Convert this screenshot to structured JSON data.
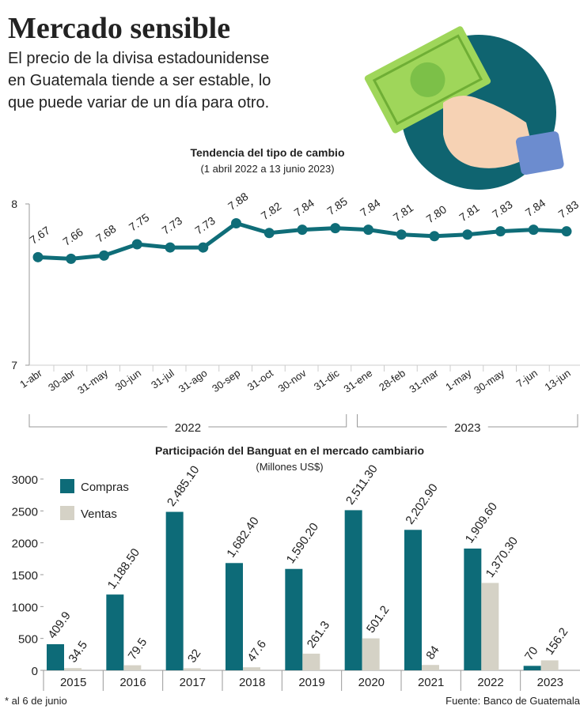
{
  "header": {
    "title": "Mercado sensible",
    "subtitle": [
      "El precio de la divisa estadounidense",
      "en Guatemala tiende a ser estable, lo",
      "que puede variar de un día para otro."
    ]
  },
  "chart_data": [
    {
      "type": "line",
      "title": "Tendencia del tipo de cambio",
      "subtitle": "(1 abril 2022 a 13 junio 2023)",
      "categories": [
        "1-abr",
        "30-abr",
        "31-may",
        "30-jun",
        "31-jul",
        "31-ago",
        "30-sep",
        "31-oct",
        "30-nov",
        "31-dic",
        "31-ene",
        "28-feb",
        "31-mar",
        "1-may",
        "30-may",
        "7-jun",
        "13-jun"
      ],
      "values": [
        7.67,
        7.66,
        7.68,
        7.75,
        7.73,
        7.73,
        7.88,
        7.82,
        7.84,
        7.85,
        7.84,
        7.81,
        7.8,
        7.81,
        7.83,
        7.84,
        7.83
      ],
      "value_labels": [
        "7.67",
        "7.66",
        "7.68",
        "7.75",
        "7.73",
        "7.73",
        "7.88",
        "7.82",
        "7.84",
        "7.85",
        "7.84",
        "7.81",
        "7.80",
        "7.81",
        "7.83",
        "7.84",
        "7.83"
      ],
      "color": "#0f6d78",
      "ylim": [
        7,
        8
      ],
      "yticks": [
        7,
        8
      ],
      "groups": [
        {
          "label": "2022",
          "count": 10
        },
        {
          "label": "2023",
          "count": 7
        }
      ]
    },
    {
      "type": "bar",
      "title": "Participación del Banguat en el mercado cambiario",
      "subtitle": "(Millones US$)",
      "categories": [
        "2015",
        "2016",
        "2017",
        "2018",
        "2019",
        "2020",
        "2021",
        "2022",
        "2023"
      ],
      "series": [
        {
          "name": "Compras",
          "color": "#0d6b78",
          "values": [
            409.9,
            1188.5,
            2485.1,
            1682.4,
            1590.2,
            2511.3,
            2202.9,
            1909.6,
            70
          ],
          "value_labels": [
            "409.9",
            "1,188.50",
            "2,485.10",
            "1,682.40",
            "1,590.20",
            "2,511.30",
            "2,202.90",
            "1,909.60",
            "70"
          ]
        },
        {
          "name": "Ventas",
          "color": "#d5d2c6",
          "values": [
            34.5,
            79.5,
            32,
            47.6,
            261.3,
            501.2,
            84,
            1370.3,
            156.2
          ],
          "value_labels": [
            "34.5",
            "79.5",
            "32",
            "47.6",
            "261.3",
            "501.2",
            "84",
            "1,370.30",
            "156.2"
          ]
        }
      ],
      "ylim": [
        0,
        3000
      ],
      "yticks": [
        0,
        500,
        1000,
        1500,
        2000,
        2500,
        3000
      ],
      "legend": "top-left",
      "footnote": "* al 6 de junio",
      "source": "Fuente: Banco de Guatemala"
    }
  ]
}
